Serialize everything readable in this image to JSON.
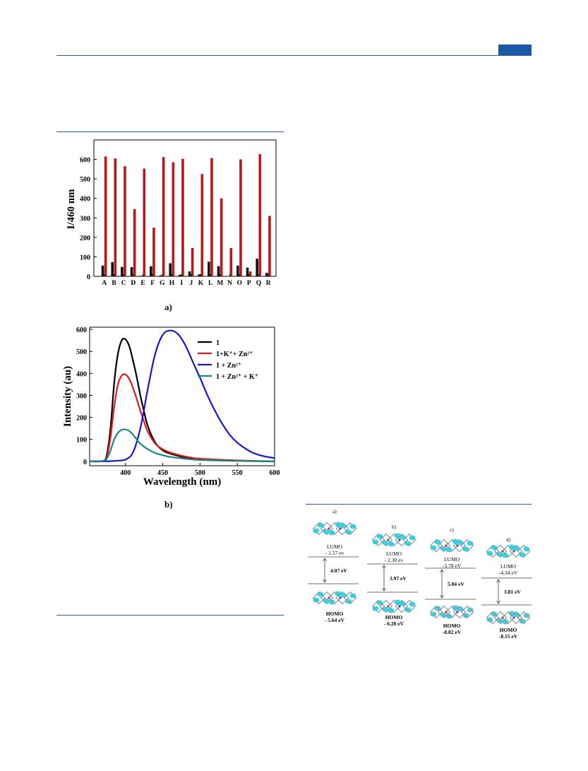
{
  "figure_a": {
    "label": "a)",
    "chart_data": {
      "type": "bar",
      "ylabel": "I/460 nm",
      "xlabel": "",
      "ylim": [
        0,
        700
      ],
      "yticks": [
        0,
        100,
        200,
        300,
        400,
        500,
        600
      ],
      "categories": [
        "A",
        "B",
        "C",
        "D",
        "E",
        "F",
        "G",
        "H",
        "I",
        "J",
        "K",
        "L",
        "M",
        "N",
        "O",
        "P",
        "Q",
        "R"
      ],
      "series": [
        {
          "values": [
            55,
            73,
            48,
            47,
            3,
            52,
            5,
            67,
            8,
            25,
            10,
            75,
            52,
            0,
            55,
            45,
            90,
            18
          ],
          "color": "#111111"
        },
        {
          "values": [
            615,
            605,
            565,
            345,
            553,
            250,
            612,
            585,
            603,
            145,
            525,
            607,
            400,
            145,
            600,
            25,
            627,
            310
          ],
          "color": "#b5191c"
        }
      ]
    }
  },
  "figure_b": {
    "label": "b)",
    "chart_data": {
      "type": "line",
      "xlabel": "Wavelength (nm)",
      "ylabel": "Intensity (au)",
      "xlim": [
        352,
        600
      ],
      "ylim": [
        -20,
        610
      ],
      "xticks": [
        400,
        450,
        500,
        550,
        600
      ],
      "yticks": [
        0,
        100,
        200,
        300,
        400,
        500,
        600
      ],
      "legend_position": "top-right",
      "series": [
        {
          "name": "1",
          "color": "#000000",
          "x": [
            352,
            370,
            375,
            380,
            385,
            390,
            395,
            400,
            405,
            410,
            415,
            420,
            425,
            430,
            440,
            450,
            460,
            480,
            500,
            550,
            600
          ],
          "y": [
            0,
            2,
            30,
            150,
            360,
            490,
            550,
            555,
            525,
            460,
            385,
            300,
            225,
            160,
            85,
            50,
            35,
            18,
            10,
            3,
            0
          ]
        },
        {
          "name": "1+K⁺+ Zn²⁺",
          "color": "#e31a1c",
          "x": [
            352,
            370,
            375,
            380,
            385,
            390,
            395,
            400,
            405,
            410,
            415,
            420,
            425,
            430,
            440,
            450,
            460,
            480,
            500,
            550,
            600
          ],
          "y": [
            0,
            2,
            20,
            110,
            250,
            350,
            390,
            395,
            375,
            335,
            285,
            230,
            180,
            135,
            80,
            55,
            40,
            22,
            12,
            4,
            0
          ]
        },
        {
          "name": "1 + Zn²⁺",
          "color": "#1515d8",
          "x": [
            352,
            370,
            380,
            390,
            400,
            410,
            420,
            430,
            440,
            450,
            460,
            470,
            480,
            490,
            500,
            510,
            520,
            530,
            540,
            550,
            560,
            570,
            580,
            590,
            600
          ],
          "y": [
            0,
            0,
            1,
            3,
            8,
            40,
            150,
            330,
            490,
            575,
            595,
            580,
            530,
            455,
            380,
            300,
            230,
            170,
            120,
            85,
            60,
            40,
            28,
            20,
            15
          ]
        },
        {
          "name": "1 + Zn²⁺ + K⁺",
          "color": "#15877f",
          "x": [
            352,
            370,
            375,
            380,
            385,
            390,
            395,
            400,
            405,
            410,
            415,
            420,
            430,
            440,
            450,
            460,
            480,
            500,
            550,
            600
          ],
          "y": [
            0,
            2,
            12,
            50,
            100,
            130,
            143,
            145,
            138,
            122,
            100,
            80,
            55,
            38,
            28,
            20,
            12,
            6,
            2,
            0
          ]
        }
      ]
    }
  },
  "figure_c": {
    "panels": [
      {
        "tag": "a)",
        "lumo_label": "LUMO",
        "lumo_value": "- 1.57 ev",
        "gap": "4.07 eV",
        "homo_label": "HOMO",
        "homo_value": "- 5.64 eV"
      },
      {
        "tag": "b)",
        "lumo_label": "LUMO",
        "lumo_value": "- 2.30 ev",
        "gap": "3.97 eV",
        "homo_label": "HOMO",
        "homo_value": "- 6.28 eV"
      },
      {
        "tag": "c)",
        "lumo_label": "LUMO",
        "lumo_value": "-3.78 eV",
        "gap": "5.04 eV",
        "homo_label": "HOMO",
        "homo_value": "-8.82 eV"
      },
      {
        "tag": "d)",
        "lumo_label": "LUMO",
        "lumo_value": "-4.34 eV",
        "gap": "3.81 eV",
        "homo_label": "HOMO",
        "homo_value": "-8.15 eV"
      }
    ]
  }
}
